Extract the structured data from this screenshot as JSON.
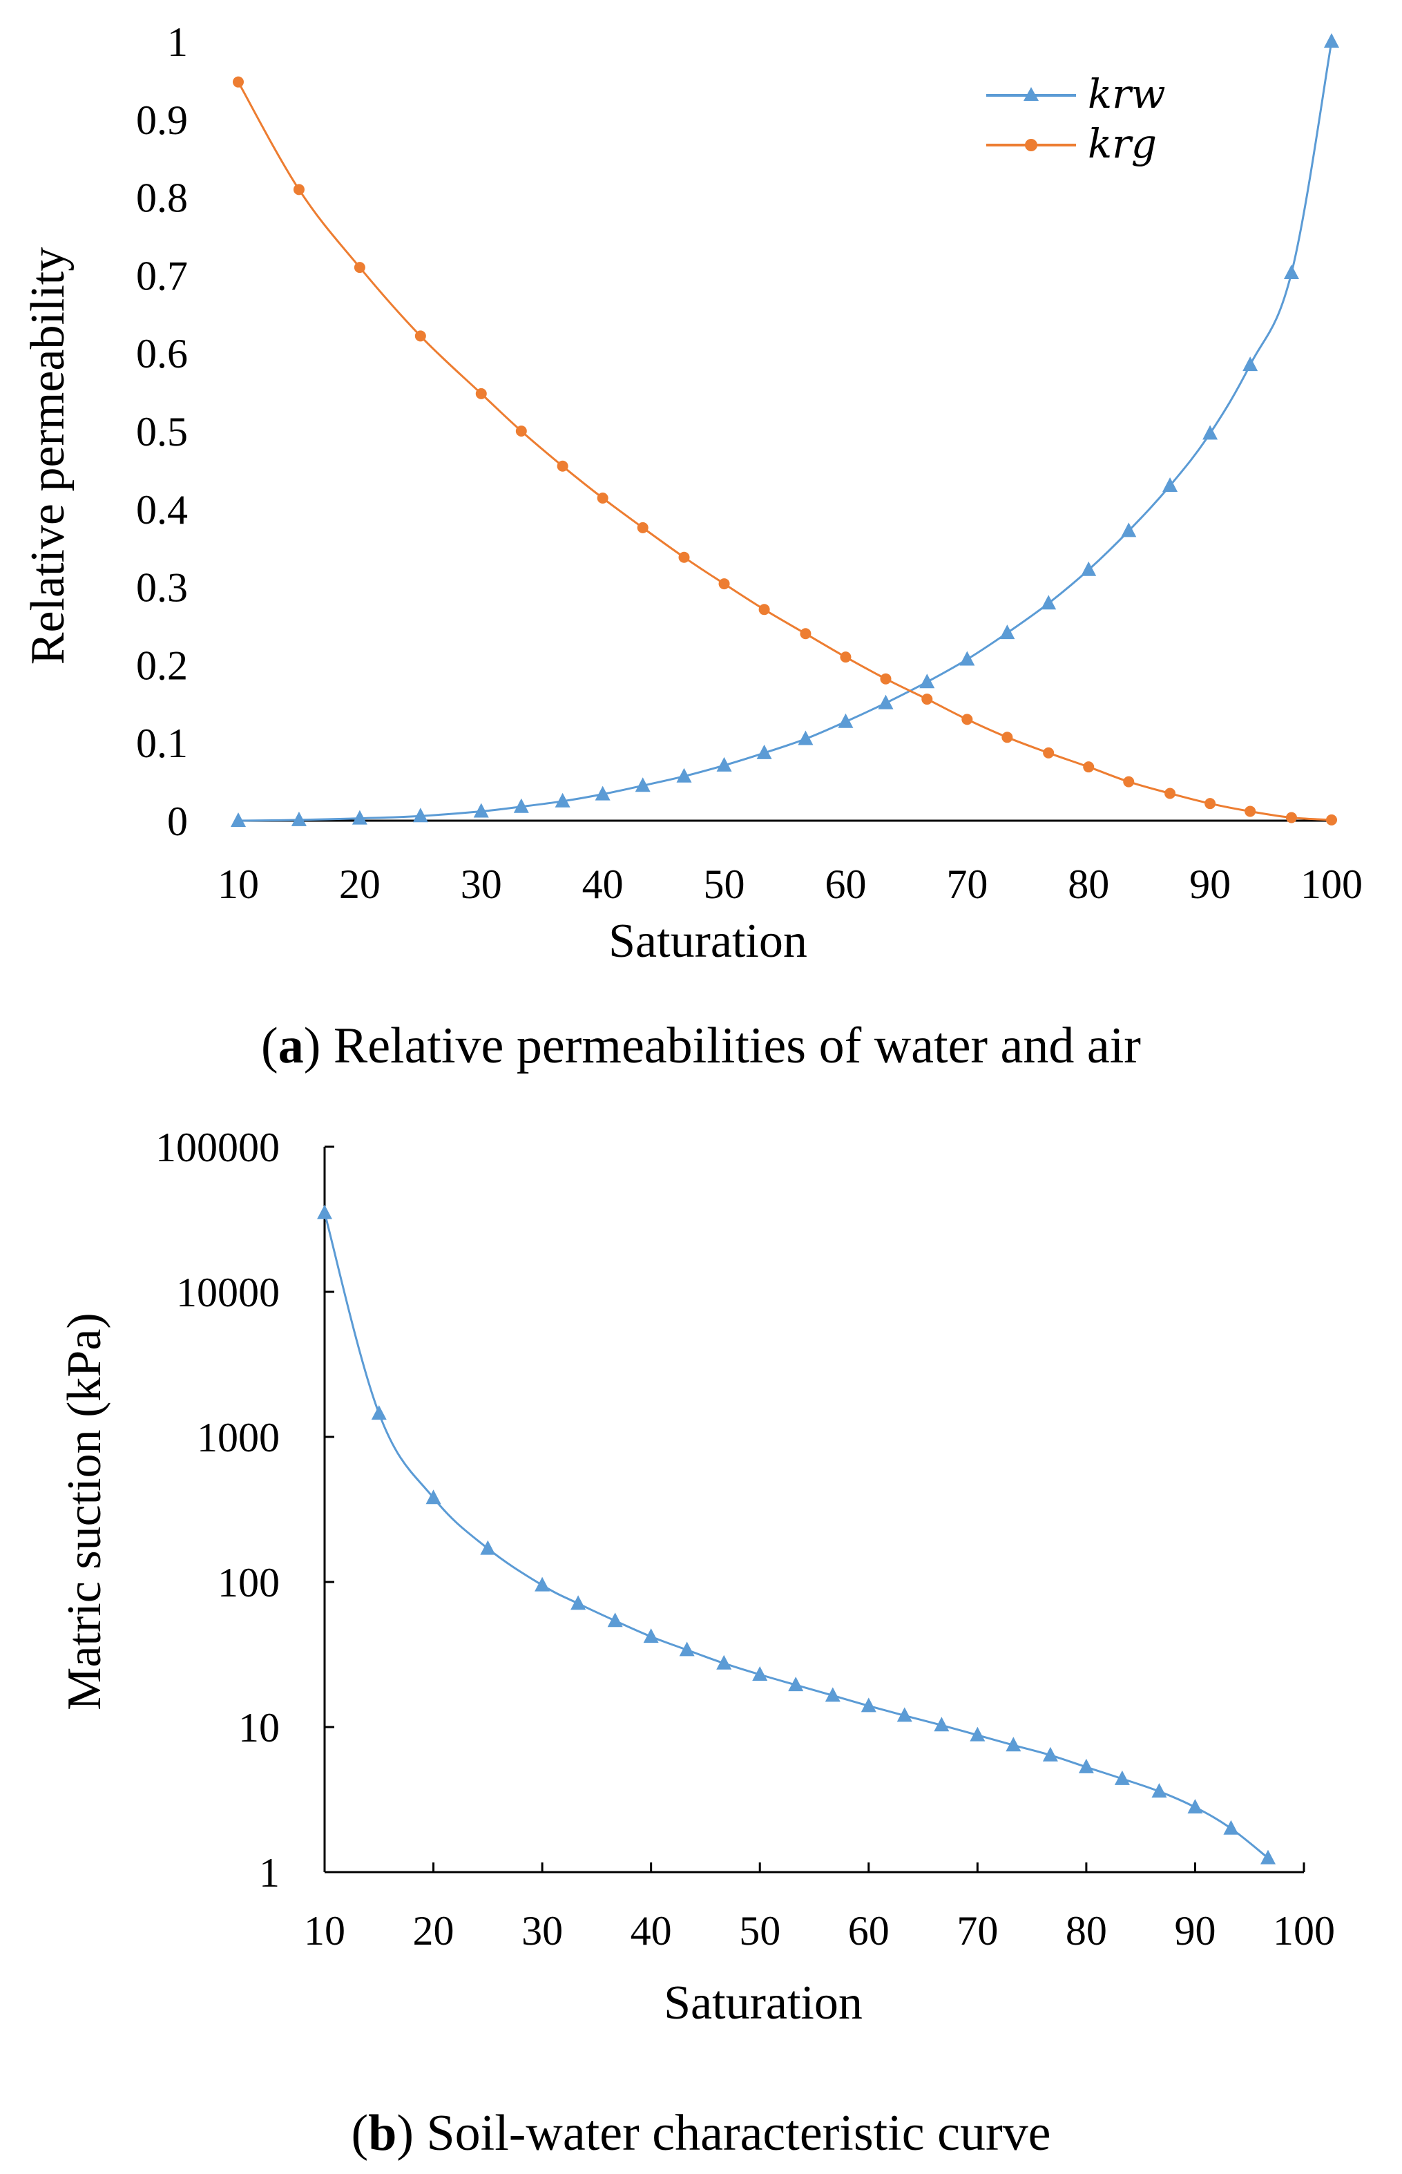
{
  "chart_data": [
    {
      "type": "line",
      "id": "a",
      "caption_label": "a",
      "caption_text": ") Relative permeabilities of water and air",
      "xlabel": "Saturation",
      "ylabel": "Relative permeability",
      "xlim": [
        10,
        100
      ],
      "ylim": [
        0,
        1
      ],
      "xticks": [
        "10",
        "20",
        "30",
        "40",
        "50",
        "60",
        "70",
        "80",
        "90",
        "100"
      ],
      "yticks": [
        "0",
        "0.1",
        "0.2",
        "0.3",
        "0.4",
        "0.5",
        "0.6",
        "0.7",
        "0.8",
        "0.9",
        "1"
      ],
      "legend_position": "top-right",
      "series": [
        {
          "name": "krw",
          "marker": "triangle",
          "color": "#5B9BD5",
          "x": [
            10,
            15,
            20,
            25,
            30,
            33.3,
            36.7,
            40,
            43.3,
            46.7,
            50,
            53.3,
            56.7,
            60,
            63.3,
            66.7,
            70,
            73.3,
            76.7,
            80,
            83.3,
            86.7,
            90,
            93.3,
            96.7,
            100
          ],
          "y": [
            0,
            0.001,
            0.003,
            0.006,
            0.012,
            0.018,
            0.025,
            0.034,
            0.045,
            0.057,
            0.071,
            0.087,
            0.105,
            0.127,
            0.151,
            0.178,
            0.207,
            0.241,
            0.279,
            0.322,
            0.372,
            0.43,
            0.497,
            0.585,
            0.703,
            1.0
          ]
        },
        {
          "name": "krg",
          "marker": "circle",
          "color": "#ED7D31",
          "x": [
            10,
            15,
            20,
            25,
            30,
            33.3,
            36.7,
            40,
            43.3,
            46.7,
            50,
            53.3,
            56.7,
            60,
            63.3,
            66.7,
            70,
            73.3,
            76.7,
            80,
            83.3,
            86.7,
            90,
            93.3,
            96.7,
            100
          ],
          "y": [
            0.948,
            0.81,
            0.71,
            0.622,
            0.548,
            0.5,
            0.455,
            0.414,
            0.376,
            0.338,
            0.304,
            0.271,
            0.24,
            0.21,
            0.182,
            0.156,
            0.13,
            0.107,
            0.087,
            0.069,
            0.05,
            0.035,
            0.022,
            0.012,
            0.004,
            0.001
          ]
        }
      ]
    },
    {
      "type": "line",
      "id": "b",
      "caption_label": "b",
      "caption_text": ") Soil-water characteristic curve",
      "xlabel": "Saturation",
      "ylabel": "Matric suction (kPa)",
      "yscale": "log",
      "xlim": [
        10,
        100
      ],
      "ylim": [
        1,
        100000
      ],
      "xticks": [
        "10",
        "20",
        "30",
        "40",
        "50",
        "60",
        "70",
        "80",
        "90",
        "100"
      ],
      "yticks": [
        "1",
        "10",
        "100",
        "1000",
        "10000",
        "100000"
      ],
      "series": [
        {
          "name": "Matric suction",
          "marker": "triangle",
          "color": "#5B9BD5",
          "x": [
            10,
            15,
            20,
            25,
            30,
            33.3,
            36.7,
            40,
            43.3,
            46.7,
            50,
            53.3,
            56.7,
            60,
            63.3,
            66.7,
            70,
            73.3,
            76.7,
            80,
            83.3,
            86.7,
            90,
            93.3,
            96.7
          ],
          "y": [
            35000,
            1450,
            380,
            170,
            95,
            71,
            54,
            42,
            34,
            27.5,
            23,
            19.5,
            16.5,
            14,
            12,
            10.3,
            8.8,
            7.5,
            6.4,
            5.3,
            4.4,
            3.6,
            2.8,
            2.0,
            1.25
          ]
        }
      ]
    }
  ]
}
